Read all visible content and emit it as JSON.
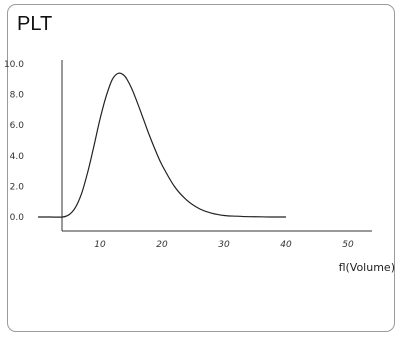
{
  "card": {
    "title": "PLT"
  },
  "chart_data": {
    "type": "line",
    "title": "PLT",
    "xlabel": "fl(Volume)",
    "ylabel": "",
    "xlim": [
      0,
      50
    ],
    "ylim": [
      0,
      10
    ],
    "grid": false,
    "xticks": [
      "10",
      "20",
      "30",
      "40",
      "50"
    ],
    "yticks": [
      "0.0",
      "2.0",
      "4.0",
      "6.0",
      "8.0",
      "10.0"
    ],
    "series": [
      {
        "color": "#222222",
        "x": [
          0,
          2,
          4,
          5,
          6,
          7,
          8,
          9,
          10,
          11,
          12,
          13,
          14,
          15,
          16,
          17,
          18,
          19,
          20,
          22,
          24,
          26,
          28,
          30,
          32,
          34,
          36,
          38,
          40
        ],
        "y": [
          0.0,
          0.0,
          0.0,
          0.15,
          0.6,
          1.5,
          2.9,
          4.6,
          6.4,
          7.9,
          9.0,
          9.4,
          9.2,
          8.5,
          7.5,
          6.4,
          5.3,
          4.3,
          3.4,
          2.0,
          1.1,
          0.55,
          0.25,
          0.1,
          0.05,
          0.02,
          0.01,
          0.0,
          0.0
        ]
      }
    ]
  }
}
